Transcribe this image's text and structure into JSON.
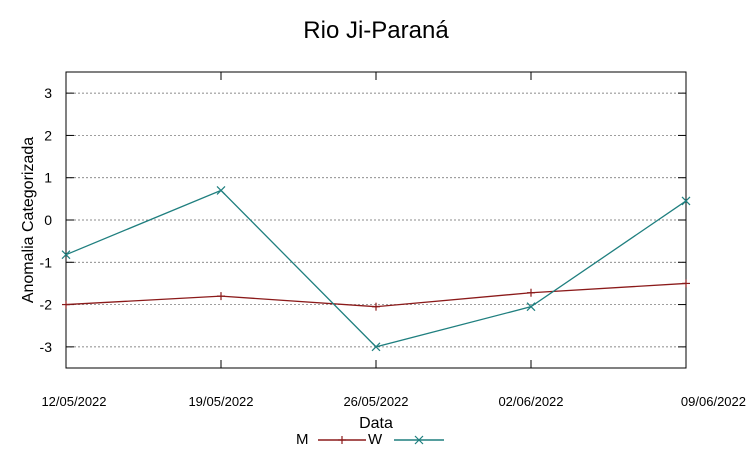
{
  "chart_data": {
    "type": "line",
    "title": "Rio Ji-Paraná",
    "xlabel": "Data",
    "ylabel": "Anomalia Categorizada",
    "categories": [
      "12/05/2022",
      "19/05/2022",
      "26/05/2022",
      "02/06/2022",
      "09/06/2022"
    ],
    "y_ticks": [
      "3",
      "2",
      "1",
      "0",
      "-1",
      "-2",
      "-3"
    ],
    "ylim": [
      -3.5,
      3.5
    ],
    "grid": true,
    "legend_position": "bottom",
    "series": [
      {
        "name": "M",
        "color": "#8b1a1a",
        "marker": "plus",
        "values": [
          -2.0,
          -1.8,
          -2.05,
          -1.72,
          -1.5
        ]
      },
      {
        "name": "W",
        "color": "#1f7f7f",
        "marker": "x",
        "values": [
          -0.82,
          0.7,
          -3.0,
          -2.05,
          0.45
        ]
      }
    ]
  }
}
